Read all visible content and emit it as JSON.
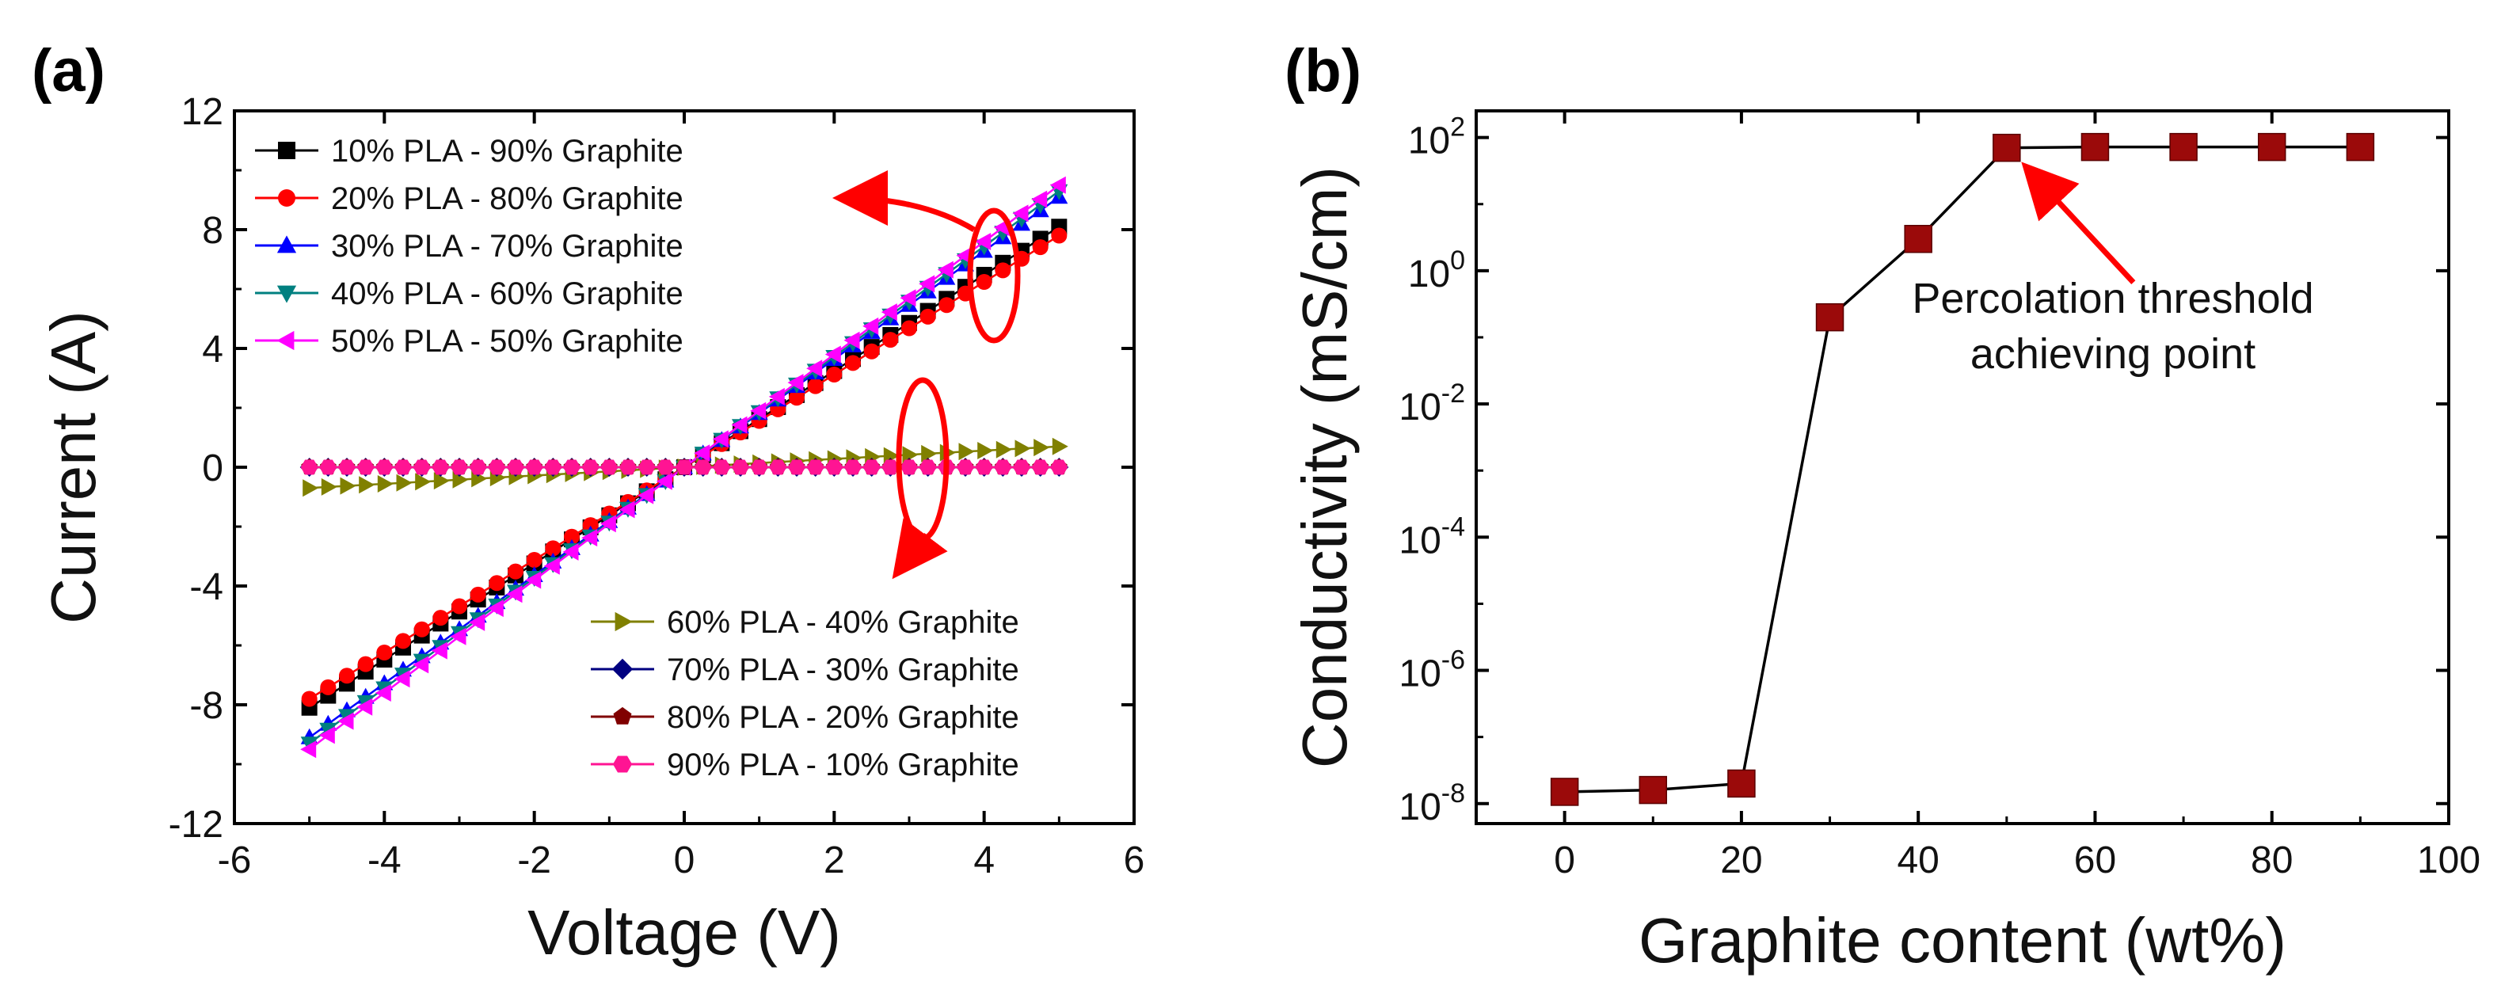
{
  "chart_data": [
    {
      "type": "scatter",
      "panel_label": "(a)",
      "xlabel": "Voltage (V)",
      "ylabel": "Current (A)",
      "xlim": [
        -6,
        6
      ],
      "ylim": [
        -12,
        12
      ],
      "xticks": [
        -6,
        -4,
        -2,
        0,
        2,
        4,
        6
      ],
      "yticks": [
        -12,
        -8,
        -4,
        0,
        4,
        8,
        12
      ],
      "grid": false,
      "x_range": [
        -5,
        5
      ],
      "points_per_series": 41,
      "legend_top_left": true,
      "legend_bottom_right": true,
      "series": [
        {
          "name": "10% PLA - 90% Graphite",
          "marker": "square",
          "color": "#000000",
          "linear_slope": 1.62,
          "group": "top"
        },
        {
          "name": "20% PLA - 80% Graphite",
          "marker": "circle",
          "color": "#ff0000",
          "linear_slope": 1.56,
          "group": "top"
        },
        {
          "name": "30% PLA - 70% Graphite",
          "marker": "triangle-up",
          "color": "#0000ff",
          "linear_slope": 1.82,
          "group": "top"
        },
        {
          "name": "40% PLA - 60% Graphite",
          "marker": "triangle-down",
          "color": "#008080",
          "linear_slope": 1.86,
          "group": "top"
        },
        {
          "name": "50% PLA - 50% Graphite",
          "marker": "triangle-left",
          "color": "#ff00ff",
          "linear_slope": 1.9,
          "group": "top"
        },
        {
          "name": "60% PLA - 40% Graphite",
          "marker": "triangle-right",
          "color": "#808000",
          "linear_slope": 0.14,
          "group": "bottom"
        },
        {
          "name": "70% PLA - 30% Graphite",
          "marker": "diamond",
          "color": "#000080",
          "linear_slope": 0.0,
          "group": "bottom"
        },
        {
          "name": "80% PLA - 20% Graphite",
          "marker": "pentagon",
          "color": "#800000",
          "linear_slope": 0.0,
          "group": "bottom"
        },
        {
          "name": "90% PLA - 10% Graphite",
          "marker": "hexagon",
          "color": "#ff1493",
          "linear_slope": 0.0,
          "group": "bottom"
        }
      ]
    },
    {
      "type": "line",
      "panel_label": "(b)",
      "xlabel": "Graphite content (wt%)",
      "ylabel": "Conductivity (mS/cm)",
      "xlim": [
        -10,
        100
      ],
      "ylim_log10": [
        -8.3,
        2.4
      ],
      "yscale": "log",
      "xticks": [
        0,
        20,
        40,
        60,
        80,
        100
      ],
      "yticks_base": "10",
      "ytick_exponents": [
        "-8",
        "-6",
        "-4",
        "-2",
        "0",
        "2"
      ],
      "grid": false,
      "series": [
        {
          "name": "Conductivity",
          "color": "#9b0a0a",
          "marker": "square",
          "x": [
            0,
            10,
            20,
            30,
            40,
            50,
            60,
            70,
            80,
            90
          ],
          "y": [
            1.5e-08,
            1.6e-08,
            2e-08,
            0.2,
            3.0,
            70,
            72,
            72,
            72,
            72
          ]
        }
      ],
      "annotation": {
        "line1": "Percolation threshold",
        "line2": "achieving point",
        "target_x": 50,
        "target_y": 70
      }
    }
  ]
}
